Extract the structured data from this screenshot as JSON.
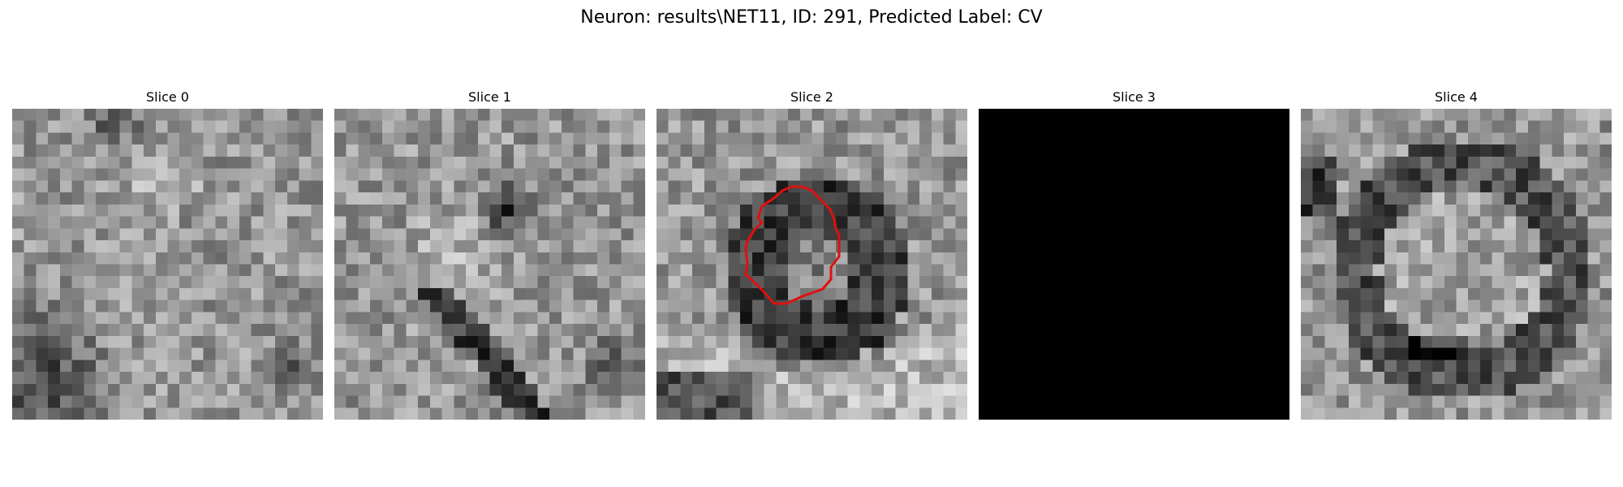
{
  "figure": {
    "title": "Neuron: results\\NET11, ID: 291, Predicted Label: CV"
  },
  "colors": {
    "background": "#ffffff",
    "contour": "#e01010",
    "empty_slice": "#000000"
  },
  "panels": [
    {
      "title": "Slice 0"
    },
    {
      "title": "Slice 1"
    },
    {
      "title": "Slice 2"
    },
    {
      "title": "Slice 3"
    },
    {
      "title": "Slice 4"
    }
  ]
}
